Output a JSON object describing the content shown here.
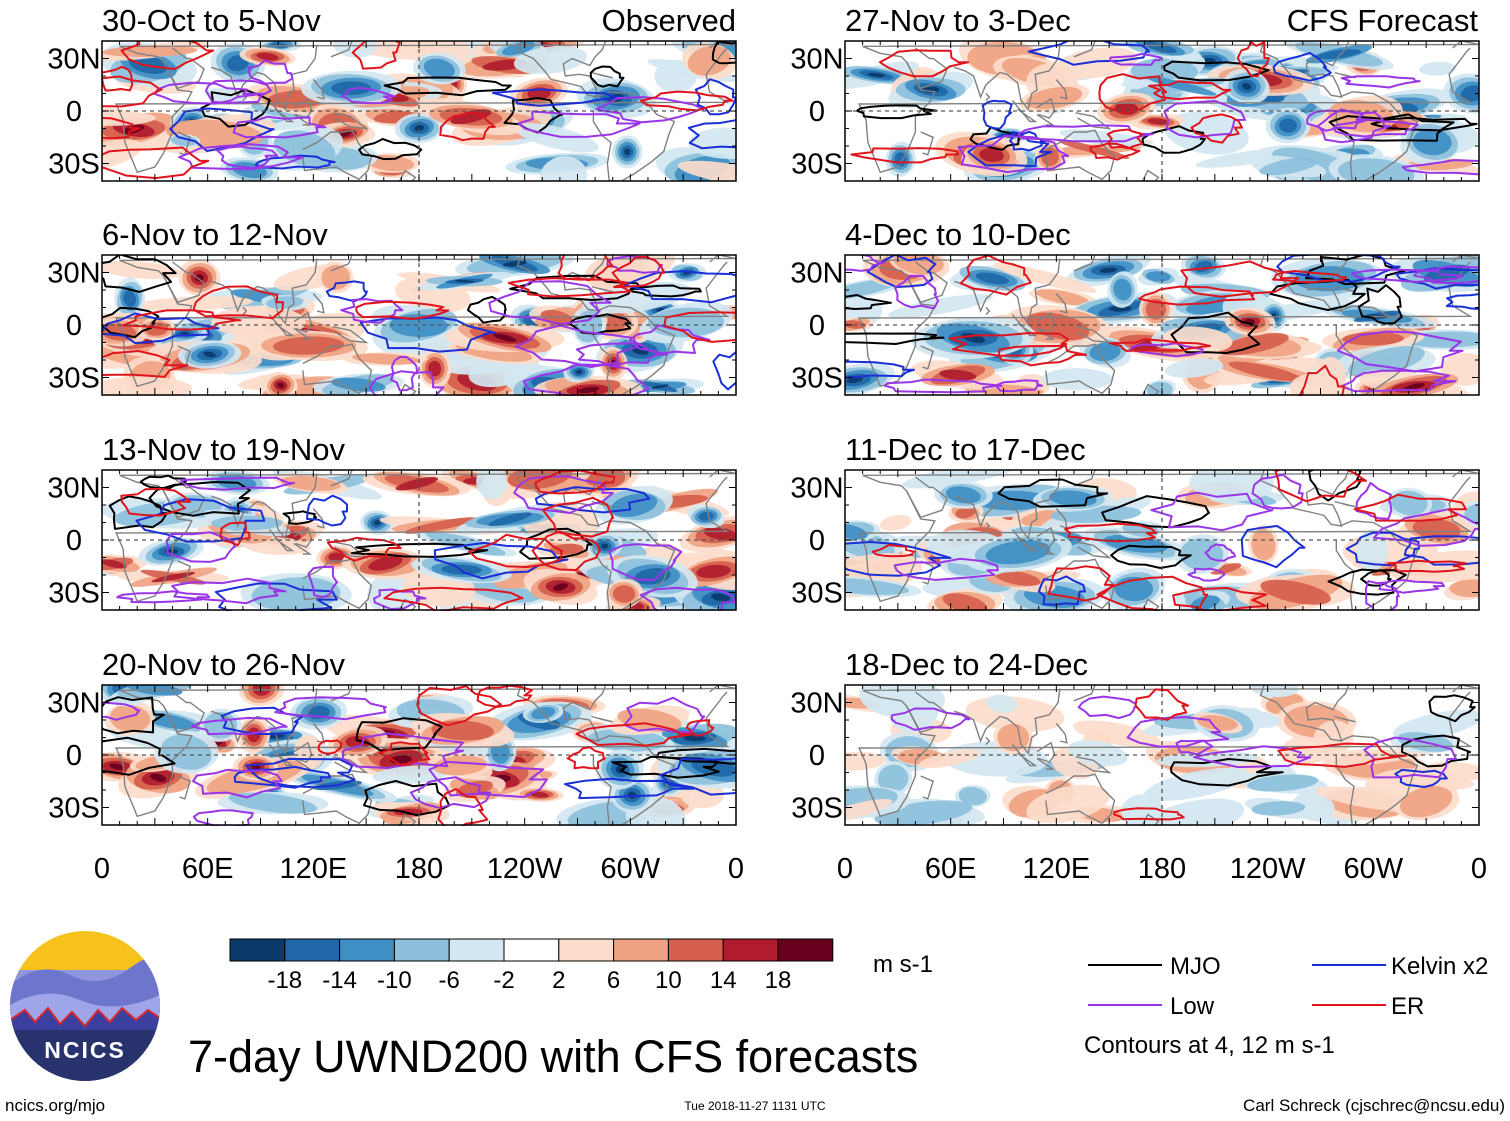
{
  "figure": {
    "title": "7-day UWND200 with CFS forecasts",
    "site": "ncics.org/mjo",
    "timestamp": "Tue 2018-11-27 1131 UTC",
    "author": "Carl Schreck (cjschrec@ncsu.edu)",
    "logo_text": "NCICS"
  },
  "chart_data": {
    "type": "heatmap",
    "variable": "UWND200",
    "units": "m s-1",
    "column_labels": [
      "Observed",
      "CFS Forecast"
    ],
    "xticks": [
      "0",
      "60E",
      "120E",
      "180",
      "120W",
      "60W",
      "0"
    ],
    "yticks": [
      "30N",
      "0",
      "30S"
    ],
    "xlim_deg_east": [
      0,
      360
    ],
    "ylim_deg_lat": [
      -40,
      40
    ],
    "colorbar": {
      "levels": [
        "-18",
        "-14",
        "-10",
        "-6",
        "-2",
        "2",
        "6",
        "10",
        "14",
        "18"
      ],
      "colors": [
        "#0b3a6a",
        "#1f67a8",
        "#3f8fc4",
        "#8dc0dc",
        "#d3e7f1",
        "#ffffff",
        "#fcdccb",
        "#f0a383",
        "#d5604d",
        "#b01c2e",
        "#67001f"
      ]
    },
    "contour_levels_note": "Contours at 4, 12 m s-1",
    "legend": [
      {
        "name": "MJO",
        "color": "#000000"
      },
      {
        "name": "Kelvin x2",
        "color": "#1a2fd6"
      },
      {
        "name": "Low",
        "color": "#9a35e8"
      },
      {
        "name": "ER",
        "color": "#e0141c"
      }
    ],
    "panels": [
      {
        "label": "30-Oct to 5-Nov",
        "col": 0,
        "row": 0,
        "seed": 11
      },
      {
        "label": "6-Nov to 12-Nov",
        "col": 0,
        "row": 1,
        "seed": 23
      },
      {
        "label": "13-Nov to 19-Nov",
        "col": 0,
        "row": 2,
        "seed": 37
      },
      {
        "label": "20-Nov to 26-Nov",
        "col": 0,
        "row": 3,
        "seed": 41
      },
      {
        "label": "27-Nov to 3-Dec",
        "col": 1,
        "row": 0,
        "seed": 53
      },
      {
        "label": "4-Dec to 10-Dec",
        "col": 1,
        "row": 1,
        "seed": 67
      },
      {
        "label": "11-Dec to 17-Dec",
        "col": 1,
        "row": 2,
        "seed": 79
      },
      {
        "label": "18-Dec to 24-Dec",
        "col": 1,
        "row": 3,
        "seed": 83
      }
    ]
  }
}
